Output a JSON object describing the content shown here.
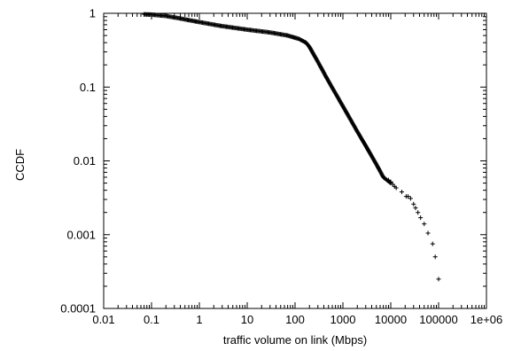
{
  "chart_data": {
    "type": "scatter",
    "title": "",
    "xlabel": "traffic volume on link (Mbps)",
    "ylabel": "CCDF",
    "xscale": "log",
    "yscale": "log",
    "xlim": [
      0.01,
      1000000
    ],
    "ylim": [
      0.0001,
      1
    ],
    "grid": false,
    "legend": "none",
    "marker": "+",
    "color": "#000000",
    "x_ticks": [
      {
        "value": 0.01,
        "label": "0.01"
      },
      {
        "value": 0.1,
        "label": "0.1"
      },
      {
        "value": 1,
        "label": "1"
      },
      {
        "value": 10,
        "label": "10"
      },
      {
        "value": 100,
        "label": "100"
      },
      {
        "value": 1000,
        "label": "1000"
      },
      {
        "value": 10000,
        "label": "10000"
      },
      {
        "value": 100000,
        "label": "100000"
      },
      {
        "value": 1000000,
        "label": "1e+06"
      }
    ],
    "y_ticks": [
      {
        "value": 0.0001,
        "label": "0.0001"
      },
      {
        "value": 0.001,
        "label": "0.001"
      },
      {
        "value": 0.01,
        "label": "0.01"
      },
      {
        "value": 0.1,
        "label": "0.1"
      },
      {
        "value": 1,
        "label": "1"
      }
    ],
    "curve": [
      [
        0.07,
        0.97
      ],
      [
        0.1,
        0.96
      ],
      [
        0.2,
        0.92
      ],
      [
        0.4,
        0.85
      ],
      [
        1,
        0.76
      ],
      [
        3,
        0.67
      ],
      [
        10,
        0.6
      ],
      [
        30,
        0.55
      ],
      [
        70,
        0.5
      ],
      [
        120,
        0.45
      ],
      [
        170,
        0.4
      ],
      [
        200,
        0.35
      ],
      [
        300,
        0.22
      ],
      [
        500,
        0.12
      ],
      [
        1000,
        0.055
      ],
      [
        2000,
        0.025
      ],
      [
        3000,
        0.016
      ],
      [
        5000,
        0.009
      ],
      [
        7000,
        0.006
      ],
      [
        10000,
        0.005
      ]
    ],
    "tail": [
      [
        9000,
        0.0055
      ],
      [
        10000,
        0.0052
      ],
      [
        11000,
        0.0048
      ],
      [
        12000,
        0.0045
      ],
      [
        13000,
        0.0043
      ],
      [
        17000,
        0.0038
      ],
      [
        21000,
        0.0033
      ],
      [
        23000,
        0.0033
      ],
      [
        26000,
        0.0031
      ],
      [
        30000,
        0.0026
      ],
      [
        33000,
        0.0023
      ],
      [
        37000,
        0.002
      ],
      [
        42000,
        0.0017
      ],
      [
        50000,
        0.0014
      ],
      [
        60000,
        0.00105
      ],
      [
        75000,
        0.00075
      ],
      [
        85000,
        0.0005
      ],
      [
        100000,
        0.00025
      ]
    ]
  }
}
